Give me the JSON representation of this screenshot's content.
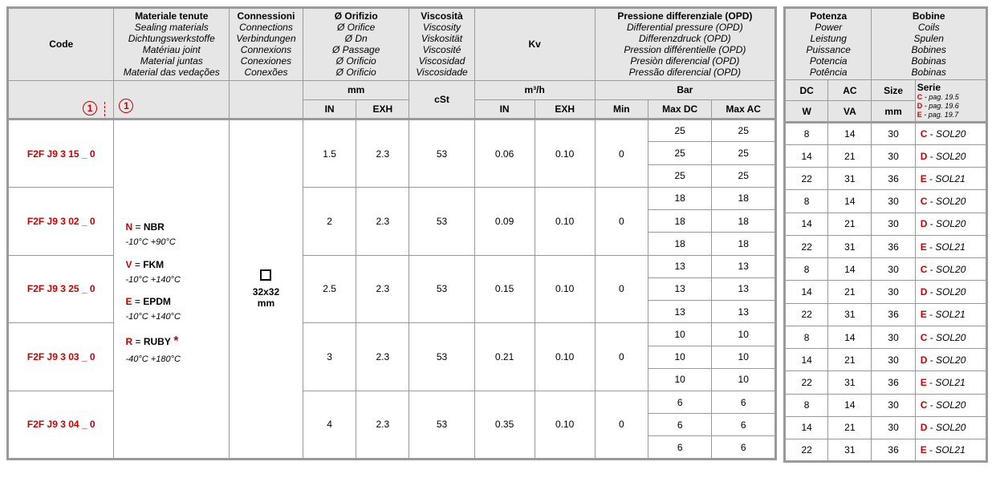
{
  "headers": {
    "code": "Code",
    "materials": [
      "Materiale tenute",
      "Sealing materials",
      "Dichtungswerkstoffe",
      "Matériau joint",
      "Material juntas",
      "Material das vedações"
    ],
    "connections": [
      "Connessioni",
      "Connections",
      "Verbindungen",
      "Connexions",
      "Conexiones",
      "Conexões"
    ],
    "orifice": [
      "Ø Orifizio",
      "Ø Orifice",
      "Ø Dn",
      "Ø Passage",
      "Ø Orificio",
      "Ø Orificio"
    ],
    "viscosity": [
      "Viscosità",
      "Viscosity",
      "Viskosität",
      "Viscosité",
      "Viscosidad",
      "Viscosidade"
    ],
    "kv": "Kv",
    "opd": [
      "Pressione differenziale (OPD)",
      "Differential pressure (OPD)",
      "Differenzdruck (OPD)",
      "Pression différentielle (OPD)",
      "Presiòn diferencial (OPD)",
      "Pressão diferencial (OPD)"
    ],
    "power": [
      "Potenza",
      "Power",
      "Leistung",
      "Puissance",
      "Potencia",
      "Potência"
    ],
    "coils": [
      "Bobine",
      "Coils",
      "Spulen",
      "Bobines",
      "Bobinas",
      "Bobinas"
    ],
    "sub": {
      "mm": "mm",
      "cst": "cSt",
      "m3h": "m³/h",
      "bar": "Bar",
      "in": "IN",
      "exh": "EXH",
      "min": "Min",
      "maxdc": "Max DC",
      "maxac": "Max AC",
      "dc": "DC",
      "ac": "AC",
      "size": "Size",
      "serie": "Serie",
      "w": "W",
      "va": "VA",
      "mm2": "mm",
      "serieNotes": [
        "C - pag. 19.5",
        "D - pag. 19.6",
        "E - pag. 19.7"
      ]
    },
    "circle": "1"
  },
  "materials": [
    {
      "code": "N",
      "name": "NBR",
      "temp": "-10°C   +90°C"
    },
    {
      "code": "V",
      "name": "FKM",
      "temp": "-10°C   +140°C"
    },
    {
      "code": "E",
      "name": "EPDM",
      "temp": "-10°C   +140°C"
    },
    {
      "code": "R",
      "name": "RUBY",
      "temp": "-40°C   +180°C",
      "star": "*"
    }
  ],
  "connection": {
    "size": "32x32",
    "unit": "mm"
  },
  "products": [
    {
      "code": "F2F J9 3 15 _ 0",
      "in": "1.5",
      "exh": "2.3",
      "cst": "53",
      "kvin": "0.06",
      "kvexh": "0.10",
      "min": "0",
      "bars": [
        [
          "25",
          "25"
        ],
        [
          "25",
          "25"
        ],
        [
          "25",
          "25"
        ]
      ]
    },
    {
      "code": "F2F J9 3 02 _ 0",
      "in": "2",
      "exh": "2.3",
      "cst": "53",
      "kvin": "0.09",
      "kvexh": "0.10",
      "min": "0",
      "bars": [
        [
          "18",
          "18"
        ],
        [
          "18",
          "18"
        ],
        [
          "18",
          "18"
        ]
      ]
    },
    {
      "code": "F2F J9 3 25 _ 0",
      "in": "2.5",
      "exh": "2.3",
      "cst": "53",
      "kvin": "0.15",
      "kvexh": "0.10",
      "min": "0",
      "bars": [
        [
          "13",
          "13"
        ],
        [
          "13",
          "13"
        ],
        [
          "13",
          "13"
        ]
      ]
    },
    {
      "code": "F2F J9 3 03 _ 0",
      "in": "3",
      "exh": "2.3",
      "cst": "53",
      "kvin": "0.21",
      "kvexh": "0.10",
      "min": "0",
      "bars": [
        [
          "10",
          "10"
        ],
        [
          "10",
          "10"
        ],
        [
          "10",
          "10"
        ]
      ]
    },
    {
      "code": "F2F J9 3 04 _ 0",
      "in": "4",
      "exh": "2.3",
      "cst": "53",
      "kvin": "0.35",
      "kvexh": "0.10",
      "min": "0",
      "bars": [
        [
          "6",
          "6"
        ],
        [
          "6",
          "6"
        ],
        [
          "6",
          "6"
        ]
      ]
    }
  ],
  "coilRows": [
    {
      "w": "8",
      "va": "14",
      "size": "30",
      "s": "C",
      "sol": "SOL20"
    },
    {
      "w": "14",
      "va": "21",
      "size": "30",
      "s": "D",
      "sol": "SOL20"
    },
    {
      "w": "22",
      "va": "31",
      "size": "36",
      "s": "E",
      "sol": "SOL21"
    }
  ],
  "style": {
    "red": "#cc0000",
    "headerBg": "#e6e6e6",
    "border": "#9a9a9a"
  }
}
